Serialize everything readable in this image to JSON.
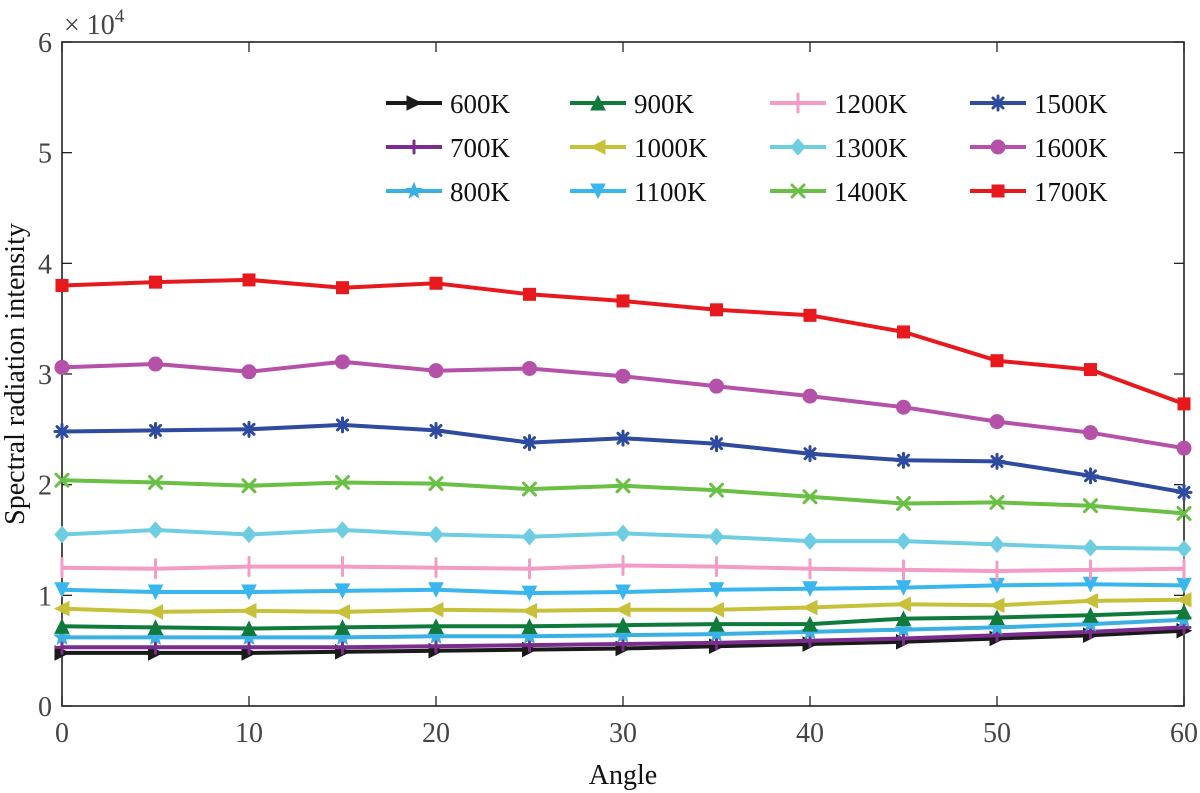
{
  "chart_data": {
    "type": "line",
    "title": "",
    "xlabel": "Angle",
    "ylabel": "Spectral radiation intensity",
    "y_multiplier_label": "× 10",
    "y_multiplier_exponent": "4",
    "xlim": [
      0,
      60
    ],
    "ylim": [
      0,
      6
    ],
    "x_ticks": [
      0,
      10,
      20,
      30,
      40,
      50,
      60
    ],
    "y_ticks": [
      0,
      1,
      2,
      3,
      4,
      5,
      6
    ],
    "grid": false,
    "legend_position": "top-right",
    "x": [
      0,
      5,
      10,
      15,
      20,
      25,
      30,
      35,
      40,
      45,
      50,
      55,
      60
    ],
    "series": [
      {
        "name": "600K",
        "color": "#1a1a1a",
        "marker": "triangle-right",
        "values": [
          0.48,
          0.48,
          0.48,
          0.49,
          0.5,
          0.51,
          0.52,
          0.54,
          0.56,
          0.58,
          0.61,
          0.64,
          0.68
        ]
      },
      {
        "name": "700K",
        "color": "#7b2d8e",
        "marker": "plus-bold",
        "values": [
          0.53,
          0.53,
          0.53,
          0.53,
          0.54,
          0.55,
          0.56,
          0.57,
          0.59,
          0.61,
          0.64,
          0.67,
          0.71
        ]
      },
      {
        "name": "800K",
        "color": "#3bb0e4",
        "marker": "star",
        "values": [
          0.62,
          0.62,
          0.62,
          0.62,
          0.63,
          0.63,
          0.64,
          0.65,
          0.67,
          0.69,
          0.71,
          0.74,
          0.78
        ]
      },
      {
        "name": "900K",
        "color": "#0f7a3c",
        "marker": "triangle-up",
        "values": [
          0.72,
          0.71,
          0.7,
          0.71,
          0.72,
          0.72,
          0.73,
          0.74,
          0.74,
          0.79,
          0.8,
          0.82,
          0.85
        ]
      },
      {
        "name": "1000K",
        "color": "#c7c13a",
        "marker": "triangle-left",
        "values": [
          0.88,
          0.85,
          0.86,
          0.85,
          0.87,
          0.86,
          0.87,
          0.87,
          0.89,
          0.92,
          0.91,
          0.95,
          0.96
        ]
      },
      {
        "name": "1100K",
        "color": "#3ab6ee",
        "marker": "triangle-down",
        "values": [
          1.05,
          1.03,
          1.03,
          1.04,
          1.05,
          1.02,
          1.03,
          1.05,
          1.06,
          1.07,
          1.09,
          1.1,
          1.09
        ]
      },
      {
        "name": "1200K",
        "color": "#f29cc6",
        "marker": "vline",
        "values": [
          1.25,
          1.24,
          1.26,
          1.26,
          1.25,
          1.24,
          1.27,
          1.26,
          1.24,
          1.23,
          1.22,
          1.23,
          1.24
        ]
      },
      {
        "name": "1300K",
        "color": "#6fcde2",
        "marker": "diamond",
        "values": [
          1.55,
          1.59,
          1.55,
          1.59,
          1.55,
          1.53,
          1.56,
          1.53,
          1.49,
          1.49,
          1.46,
          1.43,
          1.42
        ]
      },
      {
        "name": "1400K",
        "color": "#6abf45",
        "marker": "x",
        "values": [
          2.04,
          2.02,
          1.99,
          2.02,
          2.01,
          1.96,
          1.99,
          1.95,
          1.89,
          1.83,
          1.84,
          1.81,
          1.74
        ]
      },
      {
        "name": "1500K",
        "color": "#2f4b9f",
        "marker": "asterisk",
        "values": [
          2.48,
          2.49,
          2.5,
          2.54,
          2.49,
          2.38,
          2.42,
          2.37,
          2.28,
          2.22,
          2.21,
          2.08,
          1.93
        ]
      },
      {
        "name": "1600K",
        "color": "#b551a8",
        "marker": "circle",
        "values": [
          3.06,
          3.09,
          3.02,
          3.11,
          3.03,
          3.05,
          2.98,
          2.89,
          2.8,
          2.7,
          2.57,
          2.47,
          2.33
        ]
      },
      {
        "name": "1700K",
        "color": "#e8191c",
        "marker": "square",
        "values": [
          3.8,
          3.83,
          3.85,
          3.78,
          3.82,
          3.72,
          3.66,
          3.58,
          3.53,
          3.38,
          3.12,
          3.04,
          2.73
        ]
      }
    ]
  }
}
